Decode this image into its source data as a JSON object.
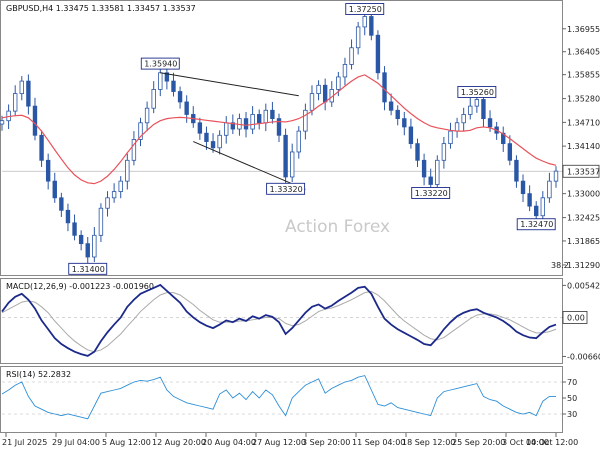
{
  "colors": {
    "candle": "#2a56a6",
    "ma": "#e8525a",
    "macd": "#1b2a8a",
    "signal": "#aaaaaa",
    "rsi": "#2d8fd6",
    "label_border": "#1b2a8a",
    "level": "#cfcfcf"
  },
  "watermark": "Action Forex",
  "chart_data": [
    {
      "type": "line",
      "name": "price",
      "header": "GBPUSD,H4  1.33475 1.33581 1.33457 1.33537",
      "ylim": [
        1.3112,
        1.3755
      ],
      "y_ticks": [
        "1.36955",
        "1.36405",
        "1.35855",
        "1.35280",
        "1.34710",
        "1.34140",
        "1.33537",
        "1.33000",
        "1.32425",
        "1.31865",
        "1.31290"
      ],
      "y_tick_values": [
        1.36955,
        1.36405,
        1.35855,
        1.3528,
        1.3471,
        1.3414,
        1.33537,
        1.33,
        1.32425,
        1.31865,
        1.3129
      ],
      "current_price_label": "1.33537",
      "x_ticks": [
        "21 Jul 2025",
        "29 Jul 04:00",
        "5 Aug 12:00",
        "12 Aug 20:00",
        "20 Aug 04:00",
        "27 Aug 12:00",
        "3 Sep 20:00",
        "11 Sep 04:00",
        "18 Sep 12:00",
        "25 Sep 20:00",
        "3 Oct 04:00",
        "10 Oct 12:00"
      ],
      "close": [
        1.3475,
        1.3498,
        1.354,
        1.357,
        1.351,
        1.344,
        1.338,
        1.333,
        1.329,
        1.326,
        1.323,
        1.32,
        1.318,
        1.3148,
        1.32,
        1.3265,
        1.329,
        1.3305,
        1.333,
        1.338,
        1.343,
        1.347,
        1.3505,
        1.355,
        1.359,
        1.357,
        1.3545,
        1.352,
        1.349,
        1.347,
        1.3445,
        1.3425,
        1.341,
        1.344,
        1.347,
        1.3455,
        1.348,
        1.3455,
        1.349,
        1.347,
        1.35,
        1.348,
        1.344,
        1.334,
        1.34,
        1.345,
        1.35,
        1.354,
        1.356,
        1.352,
        1.355,
        1.358,
        1.361,
        1.365,
        1.37,
        1.3725,
        1.368,
        1.359,
        1.352,
        1.35,
        1.348,
        1.346,
        1.342,
        1.338,
        1.334,
        1.3322,
        1.338,
        1.342,
        1.345,
        1.347,
        1.349,
        1.351,
        1.3526,
        1.348,
        1.346,
        1.3445,
        1.342,
        1.338,
        1.333,
        1.33,
        1.327,
        1.3247,
        1.329,
        1.333,
        1.3354
      ],
      "ma": [
        1.3482,
        1.3485,
        1.3487,
        1.3488,
        1.3482,
        1.3468,
        1.345,
        1.3428,
        1.3405,
        1.3383,
        1.3362,
        1.3345,
        1.3333,
        1.3326,
        1.3324,
        1.333,
        1.3342,
        1.3358,
        1.3377,
        1.3398,
        1.3418,
        1.3437,
        1.3452,
        1.3466,
        1.3475,
        1.348,
        1.3482,
        1.3483,
        1.3482,
        1.348,
        1.3478,
        1.3476,
        1.3474,
        1.3472,
        1.347,
        1.3468,
        1.3466,
        1.3464,
        1.3466,
        1.3468,
        1.347,
        1.3472,
        1.3473,
        1.3472,
        1.3475,
        1.348,
        1.3488,
        1.3498,
        1.351,
        1.352,
        1.3532,
        1.3545,
        1.3558,
        1.357,
        1.358,
        1.3585,
        1.3575,
        1.3565,
        1.355,
        1.3535,
        1.352,
        1.3505,
        1.3492,
        1.348,
        1.347,
        1.3462,
        1.3458,
        1.3455,
        1.3452,
        1.345,
        1.345,
        1.3452,
        1.3458,
        1.346,
        1.3458,
        1.3452,
        1.3443,
        1.3432,
        1.342,
        1.3408,
        1.3396,
        1.3385,
        1.3378,
        1.3372,
        1.3368
      ],
      "labels": [
        {
          "text": "1.37250",
          "i": 55,
          "value": 1.3725,
          "side": "above"
        },
        {
          "text": "1.35940",
          "i": 24,
          "value": 1.3594,
          "side": "above"
        },
        {
          "text": "1.35260",
          "i": 72,
          "value": 1.3526,
          "side": "above"
        },
        {
          "text": "1.33320",
          "i": 43,
          "value": 1.3332,
          "side": "below"
        },
        {
          "text": "1.33220",
          "i": 65,
          "value": 1.3322,
          "side": "below"
        },
        {
          "text": "1.32470",
          "i": 81,
          "value": 1.3247,
          "side": "below"
        },
        {
          "text": "1.31400",
          "i": 13,
          "value": 1.314,
          "side": "below"
        }
      ],
      "channel": [
        {
          "from": [
            24,
            1.359
          ],
          "to": [
            45,
            1.3535
          ]
        },
        {
          "from": [
            29,
            1.3425
          ],
          "to": [
            46,
            1.331
          ]
        }
      ],
      "fib_label": "38.2"
    },
    {
      "type": "line",
      "name": "macd",
      "header": "MACD(12,26,9) -0.001223 -0.001960",
      "ylim": [
        -0.0072,
        0.006
      ],
      "y_ticks": [
        "0.005427",
        "0.00",
        "-0.006603"
      ],
      "y_tick_values": [
        0.005427,
        0.0,
        -0.006603
      ],
      "current_label": "0.00",
      "macd": [
        0.001,
        0.0025,
        0.0035,
        0.004,
        0.003,
        0.0015,
        -0.0005,
        -0.002,
        -0.0035,
        -0.0045,
        -0.0052,
        -0.0058,
        -0.0062,
        -0.0065,
        -0.0058,
        -0.004,
        -0.0025,
        -0.0012,
        0.0,
        0.0018,
        0.003,
        0.004,
        0.0045,
        0.005,
        0.0055,
        0.0045,
        0.0035,
        0.0025,
        0.001,
        0.0,
        -0.0008,
        -0.0014,
        -0.0018,
        -0.0012,
        -0.0005,
        -0.0008,
        -0.0002,
        -0.0006,
        0.0002,
        -0.0002,
        0.0004,
        0.0001,
        -0.0008,
        -0.0028,
        -0.0018,
        -0.0005,
        0.0008,
        0.0018,
        0.0022,
        0.0015,
        0.002,
        0.0028,
        0.0035,
        0.0042,
        0.005,
        0.0052,
        0.004,
        0.0018,
        -0.0002,
        -0.0012,
        -0.002,
        -0.0026,
        -0.0032,
        -0.0038,
        -0.0045,
        -0.0047,
        -0.0035,
        -0.002,
        -0.0008,
        0.0002,
        0.0008,
        0.0012,
        0.0014,
        0.0008,
        0.0004,
        0.0,
        -0.0006,
        -0.0014,
        -0.0024,
        -0.003,
        -0.0034,
        -0.0035,
        -0.0025,
        -0.0016,
        -0.0012
      ],
      "signal": [
        0.0008,
        0.0014,
        0.002,
        0.0026,
        0.0028,
        0.0026,
        0.0018,
        0.0008,
        -0.0006,
        -0.0018,
        -0.003,
        -0.004,
        -0.0048,
        -0.0055,
        -0.0058,
        -0.0055,
        -0.0048,
        -0.0038,
        -0.0028,
        -0.0015,
        -0.0003,
        0.001,
        0.002,
        0.003,
        0.0038,
        0.0042,
        0.0042,
        0.0038,
        0.003,
        0.0022,
        0.0012,
        0.0004,
        -0.0004,
        -0.0008,
        -0.0008,
        -0.0008,
        -0.0006,
        -0.0006,
        -0.0004,
        -0.0002,
        0.0,
        0.0,
        -0.0002,
        -0.001,
        -0.0014,
        -0.0012,
        -0.0006,
        0.0002,
        0.001,
        0.0014,
        0.0016,
        0.002,
        0.0025,
        0.003,
        0.0036,
        0.0042,
        0.0044,
        0.0038,
        0.0028,
        0.0016,
        0.0004,
        -0.0006,
        -0.0014,
        -0.0022,
        -0.003,
        -0.0036,
        -0.0038,
        -0.0034,
        -0.0026,
        -0.0018,
        -0.001,
        -0.0002,
        0.0004,
        0.0006,
        0.0006,
        0.0004,
        0.0,
        -0.0004,
        -0.001,
        -0.0016,
        -0.0022,
        -0.0026,
        -0.0026,
        -0.0024,
        -0.002
      ]
    },
    {
      "type": "line",
      "name": "rsi",
      "header": "RSI(14) 52.2832",
      "ylim": [
        10,
        85
      ],
      "y_ticks": [
        "70",
        "50",
        "30"
      ],
      "y_tick_values": [
        70,
        50,
        30
      ],
      "levels": [
        70,
        30
      ],
      "rsi": [
        55,
        60,
        66,
        70,
        52,
        40,
        36,
        32,
        30,
        28,
        30,
        28,
        26,
        24,
        40,
        56,
        58,
        60,
        62,
        66,
        70,
        72,
        71,
        73,
        76,
        60,
        52,
        48,
        44,
        42,
        40,
        38,
        36,
        55,
        60,
        50,
        56,
        48,
        58,
        50,
        60,
        54,
        40,
        28,
        50,
        58,
        66,
        70,
        74,
        56,
        62,
        66,
        70,
        72,
        76,
        78,
        60,
        42,
        40,
        44,
        38,
        36,
        34,
        32,
        30,
        28,
        50,
        58,
        60,
        62,
        64,
        66,
        68,
        52,
        48,
        46,
        40,
        36,
        32,
        30,
        32,
        28,
        46,
        52,
        52
      ]
    }
  ]
}
